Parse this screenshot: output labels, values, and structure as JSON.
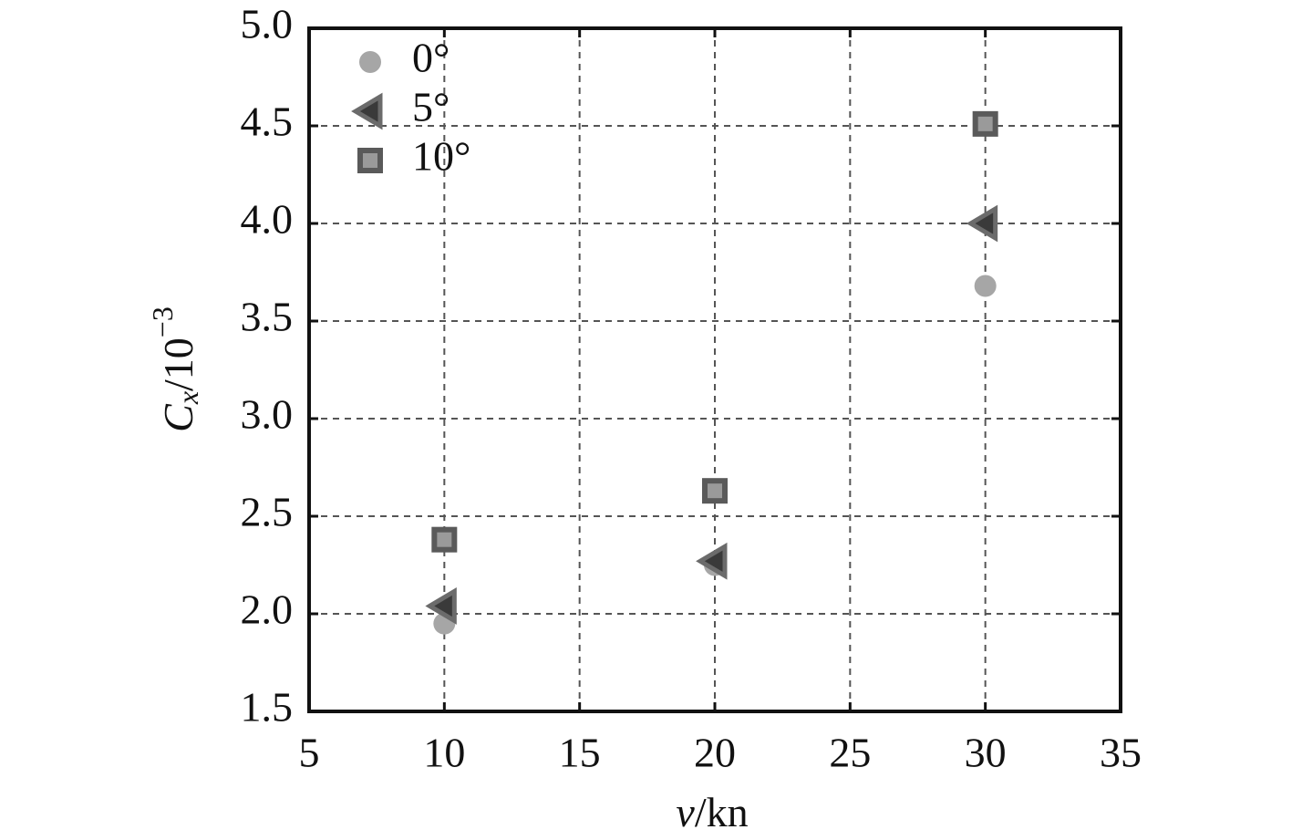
{
  "chart_data": {
    "type": "scatter",
    "xlabel": {
      "italic": "v",
      "text": "/kn"
    },
    "ylabel": {
      "base": "C",
      "sub": "x",
      "text": "/10",
      "sup": "−3"
    },
    "xlim": [
      5,
      35
    ],
    "xticks": [
      5,
      10,
      15,
      20,
      25,
      30,
      35
    ],
    "ylim": [
      1.5,
      5
    ],
    "yticks": [
      1.5,
      {
        "value": 2,
        "label": "2.0"
      },
      2.5,
      {
        "value": 3,
        "label": "3.0"
      },
      3.5,
      {
        "value": 4,
        "label": "4.0"
      },
      4.5,
      {
        "value": 5,
        "label": "5.0"
      }
    ],
    "grid": true,
    "legend": "upper left",
    "series": [
      {
        "name": "0°",
        "marker": "circle",
        "color": "#a6a6a6",
        "x": [
          10,
          20,
          30
        ],
        "values": [
          1.95,
          2.25,
          3.68
        ]
      },
      {
        "name": "5°",
        "marker": "triangle-left",
        "color": "#3a3a3a",
        "x": [
          10,
          20,
          30
        ],
        "values": [
          2.04,
          2.27,
          4.0
        ]
      },
      {
        "name": "10°",
        "marker": "square",
        "color": "#5a5a5a",
        "x": [
          10,
          20,
          30
        ],
        "values": [
          2.38,
          2.63,
          4.51
        ]
      }
    ]
  }
}
